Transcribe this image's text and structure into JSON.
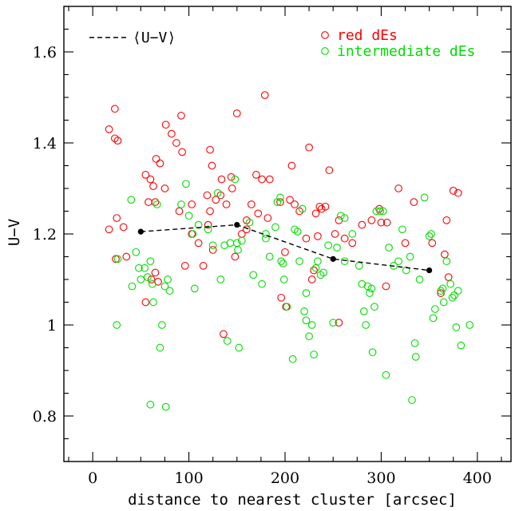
{
  "chart_data": {
    "type": "scatter",
    "xlabel": "distance to nearest cluster [arcsec]",
    "ylabel": "U−V",
    "xlim": [
      -30,
      435
    ],
    "ylim": [
      0.7,
      1.7
    ],
    "x_ticks": [
      0,
      100,
      200,
      300,
      400
    ],
    "y_ticks": [
      0.8,
      1,
      1.2,
      1.4,
      1.6
    ],
    "y_tick_labels": [
      "0.8",
      "1",
      "1.2",
      "1.4",
      "1.6"
    ],
    "colors": {
      "red": "#ff0000",
      "green": "#00dd00",
      "mean": "#000000"
    },
    "legend": {
      "placement": "top",
      "mean_label": "⟨U−V⟩",
      "entries": [
        "red dEs",
        "intermediate dEs"
      ]
    },
    "series": [
      {
        "name": "red dEs",
        "color": "#ff0000",
        "points": [
          [
            17,
            1.43
          ],
          [
            23,
            1.475
          ],
          [
            23,
            1.41
          ],
          [
            26,
            1.405
          ],
          [
            17,
            1.21
          ],
          [
            25,
            1.235
          ],
          [
            32,
            1.215
          ],
          [
            24,
            1.145
          ],
          [
            55,
            1.33
          ],
          [
            58,
            1.27
          ],
          [
            60,
            1.32
          ],
          [
            63,
            1.305
          ],
          [
            65,
            1.27
          ],
          [
            66,
            1.365
          ],
          [
            70,
            1.355
          ],
          [
            76,
            1.44
          ],
          [
            75,
            1.3
          ],
          [
            82,
            1.42
          ],
          [
            87,
            1.4
          ],
          [
            92,
            1.46
          ],
          [
            93,
            1.38
          ],
          [
            90,
            1.25
          ],
          [
            96,
            1.13
          ],
          [
            103,
            1.265
          ],
          [
            103,
            1.2
          ],
          [
            110,
            1.18
          ],
          [
            115,
            1.13
          ],
          [
            119,
            1.285
          ],
          [
            122,
            1.385
          ],
          [
            124,
            1.35
          ],
          [
            122,
            1.25
          ],
          [
            128,
            1.275
          ],
          [
            125,
            1.165
          ],
          [
            133,
            1.285
          ],
          [
            134,
            1.32
          ],
          [
            139,
            1.265
          ],
          [
            144,
            1.325
          ],
          [
            145,
            1.3
          ],
          [
            148,
            1.15
          ],
          [
            150,
            1.465
          ],
          [
            155,
            1.2
          ],
          [
            160,
            1.21
          ],
          [
            165,
            1.265
          ],
          [
            170,
            1.33
          ],
          [
            176,
            1.32
          ],
          [
            179,
            1.505
          ],
          [
            182,
            1.235
          ],
          [
            184,
            1.32
          ],
          [
            172,
            1.245
          ],
          [
            195,
            1.27
          ],
          [
            200,
            1.16
          ],
          [
            205,
            1.275
          ],
          [
            207,
            1.35
          ],
          [
            210,
            1.265
          ],
          [
            215,
            1.25
          ],
          [
            222,
            1.19
          ],
          [
            225,
            1.39
          ],
          [
            230,
            1.12
          ],
          [
            232,
            1.245
          ],
          [
            234,
            1.195
          ],
          [
            236,
            1.26
          ],
          [
            238,
            1.255
          ],
          [
            242,
            1.26
          ],
          [
            246,
            1.34
          ],
          [
            252,
            1.2
          ],
          [
            256,
            1.23
          ],
          [
            262,
            1.19
          ],
          [
            270,
            1.18
          ],
          [
            280,
            1.22
          ],
          [
            290,
            1.23
          ],
          [
            298,
            1.255
          ],
          [
            300,
            1.225
          ],
          [
            306,
            1.225
          ],
          [
            318,
            1.3
          ],
          [
            325,
            1.18
          ],
          [
            334,
            1.27
          ],
          [
            353,
            1.18
          ],
          [
            362,
            1.07
          ],
          [
            366,
            1.155
          ],
          [
            368,
            1.23
          ],
          [
            370,
            1.105
          ],
          [
            375,
            1.295
          ],
          [
            380,
            1.29
          ],
          [
            55,
            1.05
          ],
          [
            61,
            1.1
          ],
          [
            65,
            1.115
          ],
          [
            68,
            1.095
          ],
          [
            136,
            0.98
          ],
          [
            196,
            1.06
          ],
          [
            201,
            1.04
          ],
          [
            228,
            1.1
          ],
          [
            256,
            1.005
          ],
          [
            305,
            1.085
          ],
          [
            35,
            1.15
          ],
          [
            120,
            1.22
          ],
          [
            160,
            1.23
          ]
        ]
      },
      {
        "name": "intermediate dEs",
        "color": "#00dd00",
        "points": [
          [
            26,
            1.145
          ],
          [
            25,
            1.0
          ],
          [
            40,
            1.275
          ],
          [
            41,
            1.085
          ],
          [
            45,
            1.16
          ],
          [
            48,
            1.125
          ],
          [
            50,
            1.1
          ],
          [
            54,
            1.125
          ],
          [
            57,
            1.105
          ],
          [
            60,
            1.14
          ],
          [
            62,
            1.09
          ],
          [
            63,
            1.05
          ],
          [
            60,
            0.825
          ],
          [
            67,
            1.265
          ],
          [
            70,
            0.95
          ],
          [
            72,
            1.0
          ],
          [
            75,
            1.085
          ],
          [
            78,
            1.1
          ],
          [
            80,
            1.075
          ],
          [
            76,
            0.82
          ],
          [
            92,
            1.265
          ],
          [
            97,
            1.31
          ],
          [
            100,
            1.24
          ],
          [
            104,
            1.2
          ],
          [
            106,
            1.08
          ],
          [
            110,
            1.22
          ],
          [
            120,
            1.21
          ],
          [
            125,
            1.175
          ],
          [
            130,
            1.29
          ],
          [
            133,
            1.1
          ],
          [
            137,
            1.175
          ],
          [
            143,
            1.18
          ],
          [
            148,
            1.32
          ],
          [
            151,
            1.165
          ],
          [
            150,
            1.18
          ],
          [
            155,
            1.185
          ],
          [
            163,
            1.225
          ],
          [
            167,
            1.11
          ],
          [
            140,
            0.965
          ],
          [
            152,
            0.95
          ],
          [
            176,
            1.09
          ],
          [
            180,
            1.19
          ],
          [
            184,
            1.15
          ],
          [
            190,
            1.215
          ],
          [
            192,
            1.27
          ],
          [
            195,
            1.28
          ],
          [
            196,
            1.14
          ],
          [
            198,
            1.135
          ],
          [
            199,
            1.1
          ],
          [
            202,
            1.04
          ],
          [
            208,
            0.925
          ],
          [
            213,
            1.205
          ],
          [
            215,
            1.14
          ],
          [
            218,
            1.255
          ],
          [
            220,
            1.03
          ],
          [
            222,
            1.07
          ],
          [
            222,
            1.01
          ],
          [
            225,
            0.975
          ],
          [
            228,
            1.0
          ],
          [
            230,
            0.935
          ],
          [
            232,
            1.125
          ],
          [
            234,
            1.14
          ],
          [
            237,
            1.11
          ],
          [
            240,
            1.115
          ],
          [
            245,
            1.175
          ],
          [
            250,
            1.005
          ],
          [
            254,
            1.17
          ],
          [
            258,
            1.24
          ],
          [
            262,
            1.235
          ],
          [
            262,
            1.14
          ],
          [
            270,
            1.2
          ],
          [
            277,
            1.13
          ],
          [
            280,
            1.09
          ],
          [
            282,
            1.03
          ],
          [
            284,
            1.0
          ],
          [
            286,
            1.085
          ],
          [
            288,
            1.07
          ],
          [
            290,
            1.08
          ],
          [
            291,
            0.94
          ],
          [
            293,
            1.04
          ],
          [
            295,
            1.25
          ],
          [
            299,
            1.25
          ],
          [
            302,
            1.25
          ],
          [
            305,
            0.89
          ],
          [
            308,
            1.17
          ],
          [
            313,
            1.13
          ],
          [
            318,
            1.14
          ],
          [
            322,
            1.21
          ],
          [
            326,
            1.12
          ],
          [
            330,
            1.15
          ],
          [
            332,
            0.835
          ],
          [
            335,
            0.96
          ],
          [
            336,
            0.93
          ],
          [
            340,
            1.1
          ],
          [
            345,
            1.28
          ],
          [
            350,
            1.195
          ],
          [
            352,
            1.2
          ],
          [
            354,
            1.015
          ],
          [
            356,
            1.035
          ],
          [
            362,
            1.075
          ],
          [
            364,
            1.08
          ],
          [
            365,
            1.05
          ],
          [
            368,
            1.14
          ],
          [
            372,
            1.09
          ],
          [
            374,
            1.06
          ],
          [
            376,
            1.065
          ],
          [
            378,
            0.995
          ],
          [
            380,
            1.075
          ],
          [
            383,
            0.955
          ],
          [
            392,
            1.0
          ],
          [
            180,
            1.2
          ],
          [
            210,
            1.21
          ]
        ]
      }
    ],
    "mean_line": {
      "name": "⟨U−V⟩",
      "x": [
        50,
        150,
        250,
        350
      ],
      "y": [
        1.205,
        1.22,
        1.145,
        1.12
      ]
    }
  }
}
